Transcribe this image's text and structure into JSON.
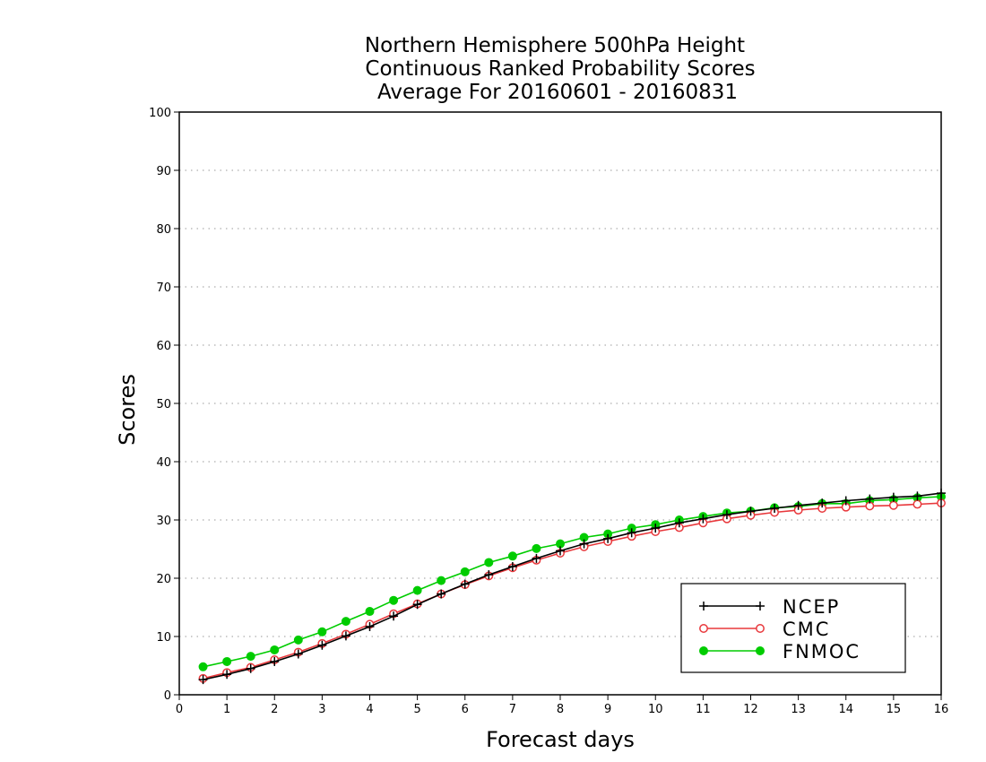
{
  "chart_data": {
    "type": "line",
    "title": [
      "Northern Hemisphere 500hPa Height",
      "Continuous Ranked Probability Scores",
      "Average For 20160601 - 20160831"
    ],
    "xlabel": "Forecast days",
    "ylabel": "Scores",
    "xlim": [
      0,
      16
    ],
    "ylim": [
      0,
      100
    ],
    "xticks": [
      "0",
      "1",
      "2",
      "3",
      "4",
      "5",
      "6",
      "7",
      "8",
      "9",
      "10",
      "11",
      "12",
      "13",
      "14",
      "15",
      "16"
    ],
    "yticks": [
      "0",
      "10",
      "20",
      "30",
      "40",
      "50",
      "60",
      "70",
      "80",
      "90",
      "100"
    ],
    "grid": true,
    "legend_position": "bottom-right",
    "x": [
      0.5,
      1,
      1.5,
      2,
      2.5,
      3,
      3.5,
      4,
      4.5,
      5,
      5.5,
      6,
      6.5,
      7,
      7.5,
      8,
      8.5,
      9,
      9.5,
      10,
      10.5,
      11,
      11.5,
      12,
      12.5,
      13,
      13.5,
      14,
      14.5,
      15,
      15.5,
      16
    ],
    "series": [
      {
        "name": "NCEP",
        "color": "#000000",
        "marker": "plus",
        "values": [
          2.6,
          3.5,
          4.5,
          5.7,
          7.0,
          8.5,
          10.1,
          11.7,
          13.5,
          15.5,
          17.3,
          19.0,
          20.6,
          22.0,
          23.4,
          24.7,
          25.9,
          26.8,
          27.8,
          28.6,
          29.5,
          30.2,
          30.9,
          31.5,
          32.0,
          32.5,
          32.9,
          33.3,
          33.6,
          33.9,
          34.1,
          34.6
        ]
      },
      {
        "name": "CMC",
        "color": "#e8383c",
        "marker": "open-circle",
        "values": [
          2.8,
          3.8,
          4.7,
          6.0,
          7.3,
          8.8,
          10.4,
          12.1,
          13.9,
          15.6,
          17.3,
          18.9,
          20.4,
          21.8,
          23.1,
          24.3,
          25.4,
          26.3,
          27.2,
          28.0,
          28.7,
          29.5,
          30.2,
          30.8,
          31.3,
          31.7,
          32.0,
          32.2,
          32.4,
          32.5,
          32.7,
          32.9
        ]
      },
      {
        "name": "FNMOC",
        "color": "#00cc00",
        "marker": "filled-circle",
        "values": [
          4.8,
          5.7,
          6.6,
          7.7,
          9.4,
          10.8,
          12.6,
          14.3,
          16.2,
          17.9,
          19.6,
          21.1,
          22.7,
          23.8,
          25.1,
          25.9,
          27.0,
          27.6,
          28.6,
          29.2,
          30.0,
          30.6,
          31.2,
          31.5,
          32.1,
          32.3,
          32.8,
          32.8,
          33.3,
          33.5,
          33.8,
          34.0
        ]
      }
    ]
  }
}
